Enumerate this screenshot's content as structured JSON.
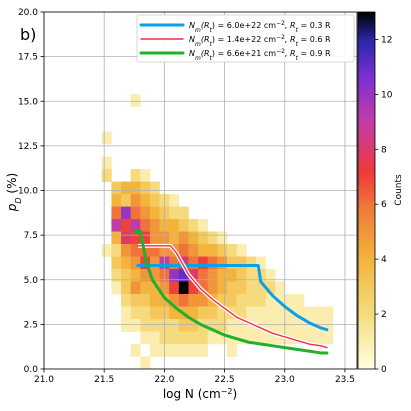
{
  "panel_label": "b)",
  "chart_data": {
    "type": "heatmap",
    "title": "",
    "xlabel_main": "log N (cm",
    "xlabel_sup": "−2",
    "xlabel_close": ")",
    "ylabel_main": "p",
    "ylabel_sub": "D",
    "ylabel_unit": " (%)",
    "xlim": [
      21.0,
      23.6
    ],
    "ylim": [
      0.0,
      20.0
    ],
    "xticks": [
      "21.0",
      "21.5",
      "22.0",
      "22.5",
      "23.0",
      "23.5"
    ],
    "xtick_values": [
      21.0,
      21.5,
      22.0,
      22.5,
      23.0,
      23.5
    ],
    "yticks": [
      "0.0",
      "2.5",
      "5.0",
      "7.5",
      "10.0",
      "12.5",
      "15.0",
      "17.5",
      "20.0"
    ],
    "ytick_values": [
      0,
      2.5,
      5,
      7.5,
      10,
      12.5,
      15,
      17.5,
      20
    ],
    "grid": true,
    "colorbar": {
      "label": "Counts",
      "range": [
        0,
        13
      ],
      "ticks": [
        "0",
        "2",
        "4",
        "6",
        "8",
        "10",
        "12"
      ],
      "tick_values": [
        0,
        2,
        4,
        6,
        8,
        10,
        12
      ]
    },
    "bins": {
      "x0": 21.48,
      "dx": 0.08,
      "y0": 0.0,
      "dy": 0.7,
      "nx": 24,
      "ny": 20
    },
    "cells": [
      [
        21.52,
        12.95,
        1
      ],
      [
        21.52,
        11.55,
        1
      ],
      [
        21.52,
        10.85,
        2
      ],
      [
        21.52,
        6.65,
        1
      ],
      [
        21.6,
        10.15,
        3
      ],
      [
        21.6,
        9.45,
        4
      ],
      [
        21.6,
        8.75,
        6
      ],
      [
        21.6,
        8.05,
        9
      ],
      [
        21.6,
        7.35,
        4
      ],
      [
        21.6,
        6.65,
        2
      ],
      [
        21.6,
        5.95,
        3
      ],
      [
        21.6,
        5.25,
        2
      ],
      [
        21.6,
        4.55,
        1
      ],
      [
        21.68,
        10.15,
        4
      ],
      [
        21.68,
        9.45,
        3
      ],
      [
        21.68,
        8.75,
        10
      ],
      [
        21.68,
        8.05,
        7
      ],
      [
        21.68,
        7.35,
        8
      ],
      [
        21.68,
        6.65,
        5
      ],
      [
        21.68,
        5.95,
        4
      ],
      [
        21.68,
        5.25,
        3
      ],
      [
        21.68,
        4.55,
        3
      ],
      [
        21.68,
        3.85,
        2
      ],
      [
        21.68,
        3.15,
        1
      ],
      [
        21.68,
        2.45,
        1
      ],
      [
        21.76,
        15.05,
        1
      ],
      [
        21.76,
        10.85,
        2
      ],
      [
        21.76,
        10.15,
        4
      ],
      [
        21.76,
        9.45,
        5
      ],
      [
        21.76,
        8.75,
        6
      ],
      [
        21.76,
        8.05,
        9
      ],
      [
        21.76,
        7.35,
        7
      ],
      [
        21.76,
        6.65,
        6
      ],
      [
        21.76,
        5.95,
        5
      ],
      [
        21.76,
        5.25,
        4
      ],
      [
        21.76,
        4.55,
        5
      ],
      [
        21.76,
        3.85,
        3
      ],
      [
        21.76,
        3.15,
        2
      ],
      [
        21.76,
        2.45,
        1
      ],
      [
        21.76,
        1.05,
        1
      ],
      [
        21.84,
        10.85,
        1
      ],
      [
        21.84,
        10.15,
        3
      ],
      [
        21.84,
        9.45,
        4
      ],
      [
        21.84,
        8.75,
        5
      ],
      [
        21.84,
        8.05,
        6
      ],
      [
        21.84,
        7.35,
        7
      ],
      [
        21.84,
        6.65,
        6
      ],
      [
        21.84,
        5.95,
        7
      ],
      [
        21.84,
        5.25,
        5
      ],
      [
        21.84,
        4.55,
        4
      ],
      [
        21.84,
        3.85,
        3
      ],
      [
        21.84,
        3.15,
        2
      ],
      [
        21.84,
        2.45,
        2
      ],
      [
        21.84,
        1.75,
        1
      ],
      [
        21.84,
        0.35,
        1
      ],
      [
        21.92,
        10.15,
        2
      ],
      [
        21.92,
        9.45,
        3
      ],
      [
        21.92,
        8.75,
        4
      ],
      [
        21.92,
        8.05,
        5
      ],
      [
        21.92,
        7.35,
        5
      ],
      [
        21.92,
        6.65,
        6
      ],
      [
        21.92,
        5.95,
        5
      ],
      [
        21.92,
        5.25,
        5
      ],
      [
        21.92,
        4.55,
        4
      ],
      [
        21.92,
        3.85,
        4
      ],
      [
        21.92,
        3.15,
        3
      ],
      [
        21.92,
        2.45,
        2
      ],
      [
        21.92,
        1.75,
        1
      ],
      [
        21.92,
        1.05,
        1
      ],
      [
        22.0,
        9.45,
        2
      ],
      [
        22.0,
        8.75,
        3
      ],
      [
        22.0,
        8.05,
        4
      ],
      [
        22.0,
        7.35,
        5
      ],
      [
        22.0,
        6.65,
        5
      ],
      [
        22.0,
        5.95,
        9
      ],
      [
        22.0,
        5.25,
        6
      ],
      [
        22.0,
        4.55,
        5
      ],
      [
        22.0,
        3.85,
        4
      ],
      [
        22.0,
        3.15,
        3
      ],
      [
        22.0,
        2.45,
        2
      ],
      [
        22.0,
        1.75,
        2
      ],
      [
        22.0,
        1.05,
        1
      ],
      [
        22.08,
        9.45,
        1
      ],
      [
        22.08,
        8.75,
        2
      ],
      [
        22.08,
        8.05,
        4
      ],
      [
        22.08,
        7.35,
        4
      ],
      [
        22.08,
        6.65,
        5
      ],
      [
        22.08,
        5.95,
        6
      ],
      [
        22.08,
        5.25,
        10
      ],
      [
        22.08,
        4.55,
        7
      ],
      [
        22.08,
        3.85,
        5
      ],
      [
        22.08,
        3.15,
        4
      ],
      [
        22.08,
        2.45,
        2
      ],
      [
        22.08,
        1.75,
        2
      ],
      [
        22.08,
        1.05,
        1
      ],
      [
        22.16,
        8.75,
        2
      ],
      [
        22.16,
        8.05,
        3
      ],
      [
        22.16,
        7.35,
        5
      ],
      [
        22.16,
        6.65,
        6
      ],
      [
        22.16,
        5.95,
        8
      ],
      [
        22.16,
        5.25,
        11
      ],
      [
        22.16,
        4.55,
        13
      ],
      [
        22.16,
        3.85,
        6
      ],
      [
        22.16,
        3.15,
        4
      ],
      [
        22.16,
        2.45,
        3
      ],
      [
        22.16,
        1.75,
        2
      ],
      [
        22.16,
        1.05,
        1
      ],
      [
        22.24,
        8.05,
        2
      ],
      [
        22.24,
        7.35,
        4
      ],
      [
        22.24,
        6.65,
        5
      ],
      [
        22.24,
        5.95,
        6
      ],
      [
        22.24,
        5.25,
        8
      ],
      [
        22.24,
        4.55,
        7
      ],
      [
        22.24,
        3.85,
        5
      ],
      [
        22.24,
        3.15,
        4
      ],
      [
        22.24,
        2.45,
        3
      ],
      [
        22.24,
        1.75,
        2
      ],
      [
        22.24,
        1.05,
        1
      ],
      [
        22.32,
        8.05,
        1
      ],
      [
        22.32,
        7.35,
        3
      ],
      [
        22.32,
        6.65,
        4
      ],
      [
        22.32,
        5.95,
        7
      ],
      [
        22.32,
        5.25,
        6
      ],
      [
        22.32,
        4.55,
        6
      ],
      [
        22.32,
        3.85,
        5
      ],
      [
        22.32,
        3.15,
        3
      ],
      [
        22.32,
        2.45,
        2
      ],
      [
        22.32,
        1.75,
        2
      ],
      [
        22.32,
        1.05,
        1
      ],
      [
        22.4,
        7.35,
        2
      ],
      [
        22.4,
        6.65,
        4
      ],
      [
        22.4,
        5.95,
        6
      ],
      [
        22.4,
        5.25,
        5
      ],
      [
        22.4,
        4.55,
        5
      ],
      [
        22.4,
        3.85,
        4
      ],
      [
        22.4,
        3.15,
        3
      ],
      [
        22.4,
        2.45,
        2
      ],
      [
        22.4,
        1.75,
        1
      ],
      [
        22.48,
        7.35,
        1
      ],
      [
        22.48,
        6.65,
        3
      ],
      [
        22.48,
        5.95,
        5
      ],
      [
        22.48,
        5.25,
        4
      ],
      [
        22.48,
        4.55,
        4
      ],
      [
        22.48,
        3.85,
        3
      ],
      [
        22.48,
        3.15,
        2
      ],
      [
        22.48,
        2.45,
        2
      ],
      [
        22.48,
        1.75,
        1
      ],
      [
        22.56,
        6.65,
        2
      ],
      [
        22.56,
        5.95,
        3
      ],
      [
        22.56,
        5.25,
        4
      ],
      [
        22.56,
        4.55,
        3
      ],
      [
        22.56,
        3.85,
        3
      ],
      [
        22.56,
        3.15,
        2
      ],
      [
        22.56,
        2.45,
        1
      ],
      [
        22.56,
        1.75,
        1
      ],
      [
        22.56,
        1.05,
        1
      ],
      [
        22.64,
        6.65,
        1
      ],
      [
        22.64,
        5.95,
        3
      ],
      [
        22.64,
        5.25,
        3
      ],
      [
        22.64,
        4.55,
        3
      ],
      [
        22.64,
        3.85,
        2
      ],
      [
        22.64,
        3.15,
        2
      ],
      [
        22.64,
        2.45,
        1
      ],
      [
        22.64,
        1.75,
        1
      ],
      [
        22.72,
        5.95,
        2
      ],
      [
        22.72,
        5.25,
        2
      ],
      [
        22.72,
        4.55,
        2
      ],
      [
        22.72,
        3.85,
        2
      ],
      [
        22.72,
        3.15,
        1
      ],
      [
        22.72,
        2.45,
        1
      ],
      [
        22.72,
        1.75,
        1
      ],
      [
        22.8,
        5.95,
        1
      ],
      [
        22.8,
        5.25,
        2
      ],
      [
        22.8,
        4.55,
        2
      ],
      [
        22.8,
        3.85,
        2
      ],
      [
        22.8,
        3.15,
        1
      ],
      [
        22.8,
        2.45,
        1
      ],
      [
        22.8,
        1.75,
        1
      ],
      [
        22.88,
        5.25,
        1
      ],
      [
        22.88,
        4.55,
        2
      ],
      [
        22.88,
        3.85,
        1
      ],
      [
        22.88,
        3.15,
        1
      ],
      [
        22.88,
        2.45,
        1
      ],
      [
        22.88,
        1.75,
        1
      ],
      [
        22.96,
        4.55,
        1
      ],
      [
        22.96,
        3.85,
        1
      ],
      [
        22.96,
        3.15,
        1
      ],
      [
        22.96,
        2.45,
        1
      ],
      [
        22.96,
        1.75,
        1
      ],
      [
        23.04,
        3.85,
        1
      ],
      [
        23.04,
        3.15,
        1
      ],
      [
        23.04,
        2.45,
        1
      ],
      [
        23.04,
        1.75,
        1
      ],
      [
        23.12,
        3.85,
        1
      ],
      [
        23.12,
        3.15,
        1
      ],
      [
        23.12,
        2.45,
        1
      ],
      [
        23.12,
        1.75,
        1
      ],
      [
        23.2,
        3.15,
        1
      ],
      [
        23.2,
        2.45,
        1
      ],
      [
        23.2,
        1.75,
        1
      ],
      [
        23.28,
        3.15,
        1
      ],
      [
        23.28,
        2.45,
        1
      ],
      [
        23.28,
        1.75,
        1
      ],
      [
        23.36,
        3.15,
        1
      ],
      [
        23.36,
        2.45,
        1
      ],
      [
        23.36,
        1.75,
        1
      ]
    ],
    "series": [
      {
        "name": "N_m(R_t) = 6.0e+22 cm^-2, R_t = 0.3 R",
        "label_parts": [
          "N",
          "m",
          "(R",
          "t",
          ") = 6.0e+22 cm",
          "−2",
          ", R",
          "t",
          " = 0.3 R"
        ],
        "color": "#0aa0ea",
        "x": [
          21.78,
          21.9,
          22.0,
          22.1,
          22.2,
          22.3,
          22.4,
          22.5,
          22.6,
          22.7,
          22.78,
          22.8,
          22.85,
          22.9,
          23.0,
          23.1,
          23.2,
          23.3,
          23.35
        ],
        "y": [
          5.8,
          5.8,
          5.8,
          5.8,
          5.8,
          5.8,
          5.8,
          5.8,
          5.8,
          5.8,
          5.8,
          4.9,
          4.5,
          4.1,
          3.5,
          3.0,
          2.6,
          2.3,
          2.2
        ]
      },
      {
        "name": "N_m(R_t) = 1.4e+22 cm^-2, R_t = 0.6 R",
        "label_parts": [
          "N",
          "m",
          "(R",
          "t",
          ") = 1.4e+22 cm",
          "−2",
          ", R",
          "t",
          " = 0.6 R"
        ],
        "color": "#ff2a3c",
        "x": [
          21.78,
          21.9,
          22.0,
          22.05,
          22.1,
          22.15,
          22.2,
          22.3,
          22.4,
          22.5,
          22.6,
          22.7,
          22.8,
          22.9,
          23.0,
          23.1,
          23.2,
          23.3,
          23.35
        ],
        "y": [
          6.9,
          6.9,
          6.9,
          6.9,
          6.5,
          5.9,
          5.3,
          4.5,
          3.9,
          3.4,
          2.9,
          2.6,
          2.3,
          2.0,
          1.8,
          1.6,
          1.4,
          1.3,
          1.2
        ]
      },
      {
        "name": "N_m(R_t) = 6.6e+21 cm^-2, R_t = 0.9 R",
        "label_parts": [
          "N",
          "m",
          "(R",
          "t",
          ") = 6.6e+21 cm",
          "−2",
          ", R",
          "t",
          " = 0.9 R"
        ],
        "color": "#22b02c",
        "x": [
          21.76,
          21.8,
          21.85,
          21.9,
          22.0,
          22.1,
          22.2,
          22.3,
          22.4,
          22.5,
          22.6,
          22.7,
          22.8,
          22.9,
          23.0,
          23.1,
          23.2,
          23.3,
          23.35
        ],
        "y": [
          7.7,
          7.7,
          6.0,
          5.0,
          4.0,
          3.4,
          2.9,
          2.5,
          2.2,
          1.9,
          1.7,
          1.5,
          1.4,
          1.3,
          1.2,
          1.1,
          1.0,
          0.9,
          0.9
        ]
      }
    ],
    "legend_position": "top-right"
  }
}
